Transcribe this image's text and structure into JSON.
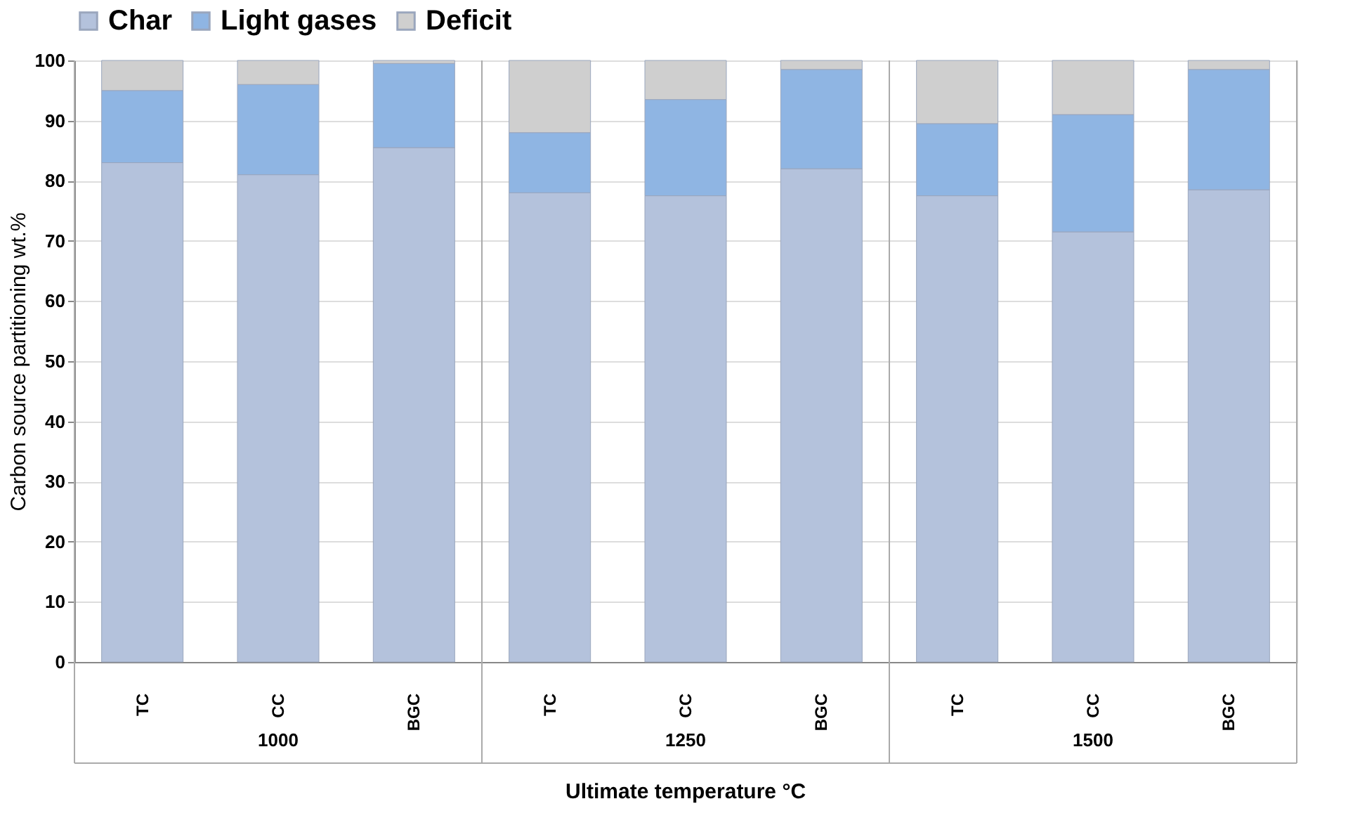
{
  "chart_data": {
    "type": "bar",
    "stacked": true,
    "xlabel": "Ultimate temperature °C",
    "ylabel": "Carbon source partitioning wt.%",
    "categories": [
      "TC",
      "CC",
      "BGC",
      "TC",
      "CC",
      "BGC",
      "TC",
      "CC",
      "BGC"
    ],
    "annotations": [
      "1000",
      "1250",
      "1500"
    ],
    "series": [
      {
        "name": "Char",
        "color": "#b4c2dc",
        "values": [
          83,
          81,
          85.5,
          78,
          77.5,
          82,
          77.5,
          71.5,
          78.5
        ]
      },
      {
        "name": "Light gases",
        "color": "#8fb5e3",
        "values": [
          12,
          15,
          14,
          10,
          16,
          16.5,
          12,
          19.5,
          20
        ]
      },
      {
        "name": "Deficit",
        "color": "#cfcfcf",
        "values": [
          5,
          4,
          0.5,
          12,
          6.5,
          1.5,
          10.5,
          9,
          1.5
        ]
      }
    ],
    "ylim": [
      0,
      100
    ],
    "yticks": [
      0,
      10,
      20,
      30,
      40,
      50,
      60,
      70,
      80,
      90,
      100
    ],
    "grid": "y",
    "legend": "top"
  }
}
